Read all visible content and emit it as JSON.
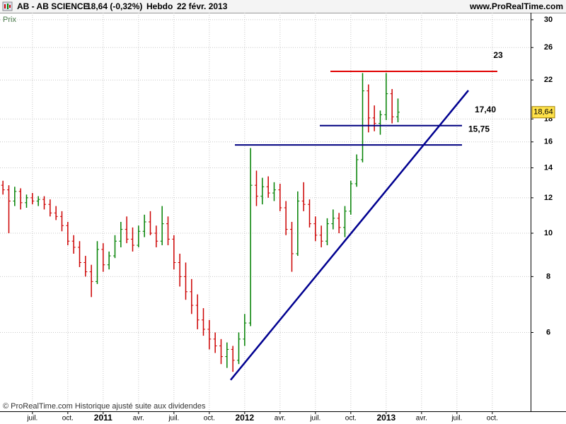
{
  "header": {
    "symbol": "AB - AB SCIENCE",
    "quote": "18,64 (-0,32%)",
    "period": "Hebdo",
    "date": "22 févr. 2013",
    "site": "www.ProRealTime.com"
  },
  "chart_data": {
    "type": "ohlc",
    "y_label": "Prix",
    "footer": "© ProRealTime.com Historique ajusté suite aux dividendes",
    "log_scale": true,
    "grid": true,
    "up_color": "#008000",
    "down_color": "#cc0000",
    "ylim": [
      4,
      31.1
    ],
    "yticks": [
      6,
      8,
      10,
      12,
      14,
      16,
      18,
      22,
      26,
      30
    ],
    "categories": [
      null,
      null,
      null,
      null,
      null,
      "juil.",
      null,
      null,
      null,
      null,
      null,
      "oct.",
      null,
      null,
      null,
      null,
      null,
      "2011",
      null,
      null,
      null,
      null,
      null,
      "avr.",
      null,
      null,
      null,
      null,
      null,
      "juil.",
      null,
      null,
      null,
      null,
      null,
      "oct.",
      null,
      null,
      null,
      null,
      null,
      "2012",
      null,
      null,
      null,
      null,
      null,
      "avr.",
      null,
      null,
      null,
      null,
      null,
      "juil.",
      null,
      null,
      null,
      null,
      null,
      "oct.",
      null,
      null,
      null,
      null,
      null,
      "2013",
      null,
      null,
      null,
      null,
      null,
      "avr.",
      null,
      null,
      null,
      null,
      null,
      "juil.",
      null,
      null,
      null,
      null,
      null,
      "oct.",
      null,
      null,
      null,
      null,
      null,
      null
    ],
    "open": [
      12.8,
      12.5,
      11.8,
      12.4,
      11.7,
      12.0,
      11.8,
      11.9,
      11.6,
      11.1,
      10.9,
      10.4,
      9.6,
      9.3,
      8.6,
      8.2,
      7.8,
      9.2,
      8.5,
      8.9,
      9.6,
      10.2,
      9.7,
      9.4,
      10.1,
      10.6,
      10.0,
      9.6,
      10.5,
      9.7,
      8.6,
      8.0,
      7.4,
      6.9,
      6.4,
      6.1,
      5.8,
      5.6,
      5.3,
      5.5,
      5.2,
      5.8,
      6.3,
      12.8,
      12.1,
      12.7,
      12.3,
      12.5,
      11.4,
      10.2,
      9.0,
      11.8,
      11.6,
      10.5,
      9.9,
      9.6,
      10.5,
      10.8,
      10.3,
      11.2,
      12.9,
      14.6,
      20.8,
      18.1,
      17.6,
      18.4,
      20.5,
      18.2,
      null,
      null,
      null,
      null,
      null,
      null,
      null,
      null,
      null,
      null,
      null,
      null,
      null,
      null,
      null,
      null,
      null,
      null,
      null,
      null,
      null,
      null
    ],
    "high": [
      13.1,
      12.8,
      12.7,
      12.6,
      12.2,
      12.3,
      12.1,
      12.1,
      11.9,
      11.5,
      11.2,
      10.6,
      9.9,
      9.6,
      8.9,
      8.5,
      9.6,
      9.5,
      9.1,
      9.9,
      10.6,
      10.9,
      10.3,
      10.4,
      11.0,
      11.2,
      10.4,
      11.5,
      10.9,
      9.9,
      9.0,
      8.6,
      7.9,
      7.3,
      6.8,
      6.4,
      6.0,
      5.8,
      5.7,
      5.6,
      6.0,
      6.6,
      15.5,
      13.8,
      13.3,
      13.4,
      13.0,
      12.9,
      11.8,
      10.6,
      12.4,
      13.0,
      11.9,
      10.9,
      10.4,
      10.8,
      11.3,
      11.1,
      11.5,
      13.1,
      15.0,
      22.8,
      21.5,
      19.3,
      18.8,
      22.8,
      21.0,
      20.0,
      null,
      null,
      null,
      null,
      null,
      null,
      null,
      null,
      null,
      null,
      null,
      null,
      null,
      null,
      null,
      null,
      null,
      null,
      null,
      null,
      null,
      null
    ],
    "low": [
      12.2,
      10.0,
      11.5,
      11.3,
      11.4,
      11.6,
      11.5,
      11.3,
      10.9,
      10.7,
      10.1,
      9.4,
      9.0,
      8.4,
      8.0,
      7.2,
      7.7,
      8.2,
      8.3,
      8.8,
      9.3,
      9.5,
      9.1,
      9.3,
      9.8,
      9.9,
      9.3,
      9.4,
      9.4,
      8.3,
      7.6,
      7.1,
      6.6,
      6.1,
      5.9,
      5.5,
      5.4,
      5.1,
      5.0,
      4.9,
      5.1,
      5.6,
      6.2,
      11.5,
      11.6,
      12.0,
      11.8,
      11.2,
      9.9,
      8.2,
      8.9,
      11.2,
      10.3,
      9.6,
      9.3,
      9.4,
      10.2,
      10.0,
      9.8,
      11.0,
      12.7,
      14.4,
      16.8,
      16.9,
      16.6,
      17.9,
      17.6,
      17.7,
      null,
      null,
      null,
      null,
      null,
      null,
      null,
      null,
      null,
      null,
      null,
      null,
      null,
      null,
      null,
      null,
      null,
      null,
      null,
      null,
      null,
      null
    ],
    "close": [
      12.5,
      11.8,
      12.4,
      11.7,
      12.0,
      11.8,
      11.9,
      11.6,
      11.1,
      10.9,
      10.4,
      9.6,
      9.3,
      8.6,
      8.2,
      7.8,
      9.2,
      8.5,
      8.9,
      9.6,
      10.2,
      9.7,
      9.4,
      10.1,
      10.6,
      10.0,
      9.6,
      10.5,
      9.7,
      8.6,
      8.0,
      7.4,
      6.9,
      6.4,
      6.1,
      5.8,
      5.6,
      5.3,
      5.5,
      5.2,
      5.8,
      6.3,
      12.8,
      12.1,
      12.7,
      12.3,
      12.5,
      11.4,
      10.2,
      9.0,
      11.8,
      11.6,
      10.5,
      9.9,
      9.6,
      10.5,
      10.8,
      10.3,
      11.2,
      12.9,
      14.6,
      20.8,
      18.1,
      17.6,
      18.4,
      20.5,
      18.2,
      18.64,
      null,
      null,
      null,
      null,
      null,
      null,
      null,
      null,
      null,
      null,
      null,
      null,
      null,
      null,
      null,
      null,
      null,
      null,
      null,
      null,
      null,
      null
    ],
    "levels": [
      {
        "value": 23,
        "label": "23",
        "color": "#e00000"
      },
      {
        "value": 17.4,
        "label": "17,40",
        "color": "#000080"
      },
      {
        "value": 15.75,
        "label": "15,75",
        "color": "#000080"
      }
    ],
    "trendline": {
      "start": 4.7,
      "end": 20.85,
      "color": "#000090"
    },
    "last": {
      "value": 18.64,
      "label": "18,64",
      "color": "#ffe24a"
    }
  }
}
